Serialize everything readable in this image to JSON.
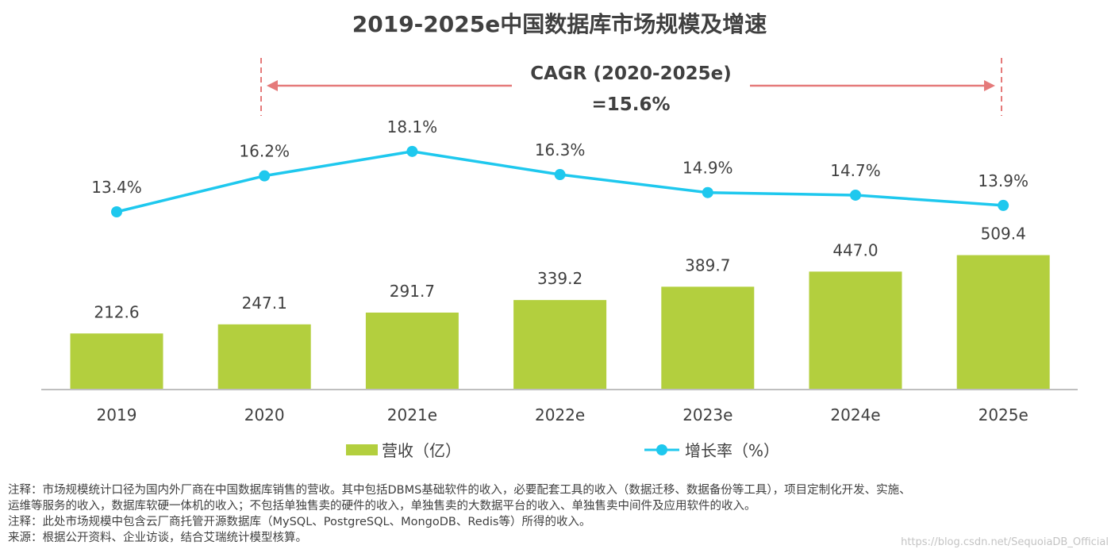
{
  "colors": {
    "bar": "#b3cf3e",
    "line": "#1ec8ee",
    "cagr_arrow": "#e57a7a",
    "axis": "#bfbfbf",
    "text": "#404040"
  },
  "cagr": {
    "label": "CAGR (2020-2025e)",
    "value": "=15.6%"
  },
  "legend": {
    "bar_label": "营收（亿）",
    "line_label": "增长率（%）"
  },
  "chart_data": {
    "type": "bar+line",
    "title": "2019-2025e中国数据库市场规模及增速",
    "categories": [
      "2019",
      "2020",
      "2021e",
      "2022e",
      "2023e",
      "2024e",
      "2025e"
    ],
    "series": [
      {
        "name": "营收（亿）",
        "type": "bar",
        "values": [
          212.6,
          247.1,
          291.7,
          339.2,
          389.7,
          447.0,
          509.4
        ],
        "labels": [
          "212.6",
          "247.1",
          "291.7",
          "339.2",
          "389.7",
          "447.0",
          "509.4"
        ]
      },
      {
        "name": "增长率（%）",
        "type": "line",
        "values": [
          13.4,
          16.2,
          18.1,
          16.3,
          14.9,
          14.7,
          13.9
        ],
        "labels": [
          "13.4%",
          "16.2%",
          "18.1%",
          "16.3%",
          "14.9%",
          "14.7%",
          "13.9%"
        ]
      }
    ]
  },
  "notes": [
    "注释：市场规模统计口径为国内外厂商在中国数据库销售的营收。其中包括DBMS基础软件的收入，必要配套工具的收入（数据迁移、数据备份等工具），项目定制化开发、实施、",
    "运维等服务的收入，数据库软硬一体机的收入；不包括单独售卖的硬件的收入，单独售卖的大数据平台的收入、单独售卖中间件及应用软件的收入。",
    "注释：此处市场规模中包含云厂商托管开源数据库（MySQL、PostgreSQL、MongoDB、Redis等）所得的收入。",
    "来源：根据公开资料、企业访谈，结合艾瑞统计模型核算。"
  ],
  "watermark": "https://blog.csdn.net/SequoiaDB_Official"
}
